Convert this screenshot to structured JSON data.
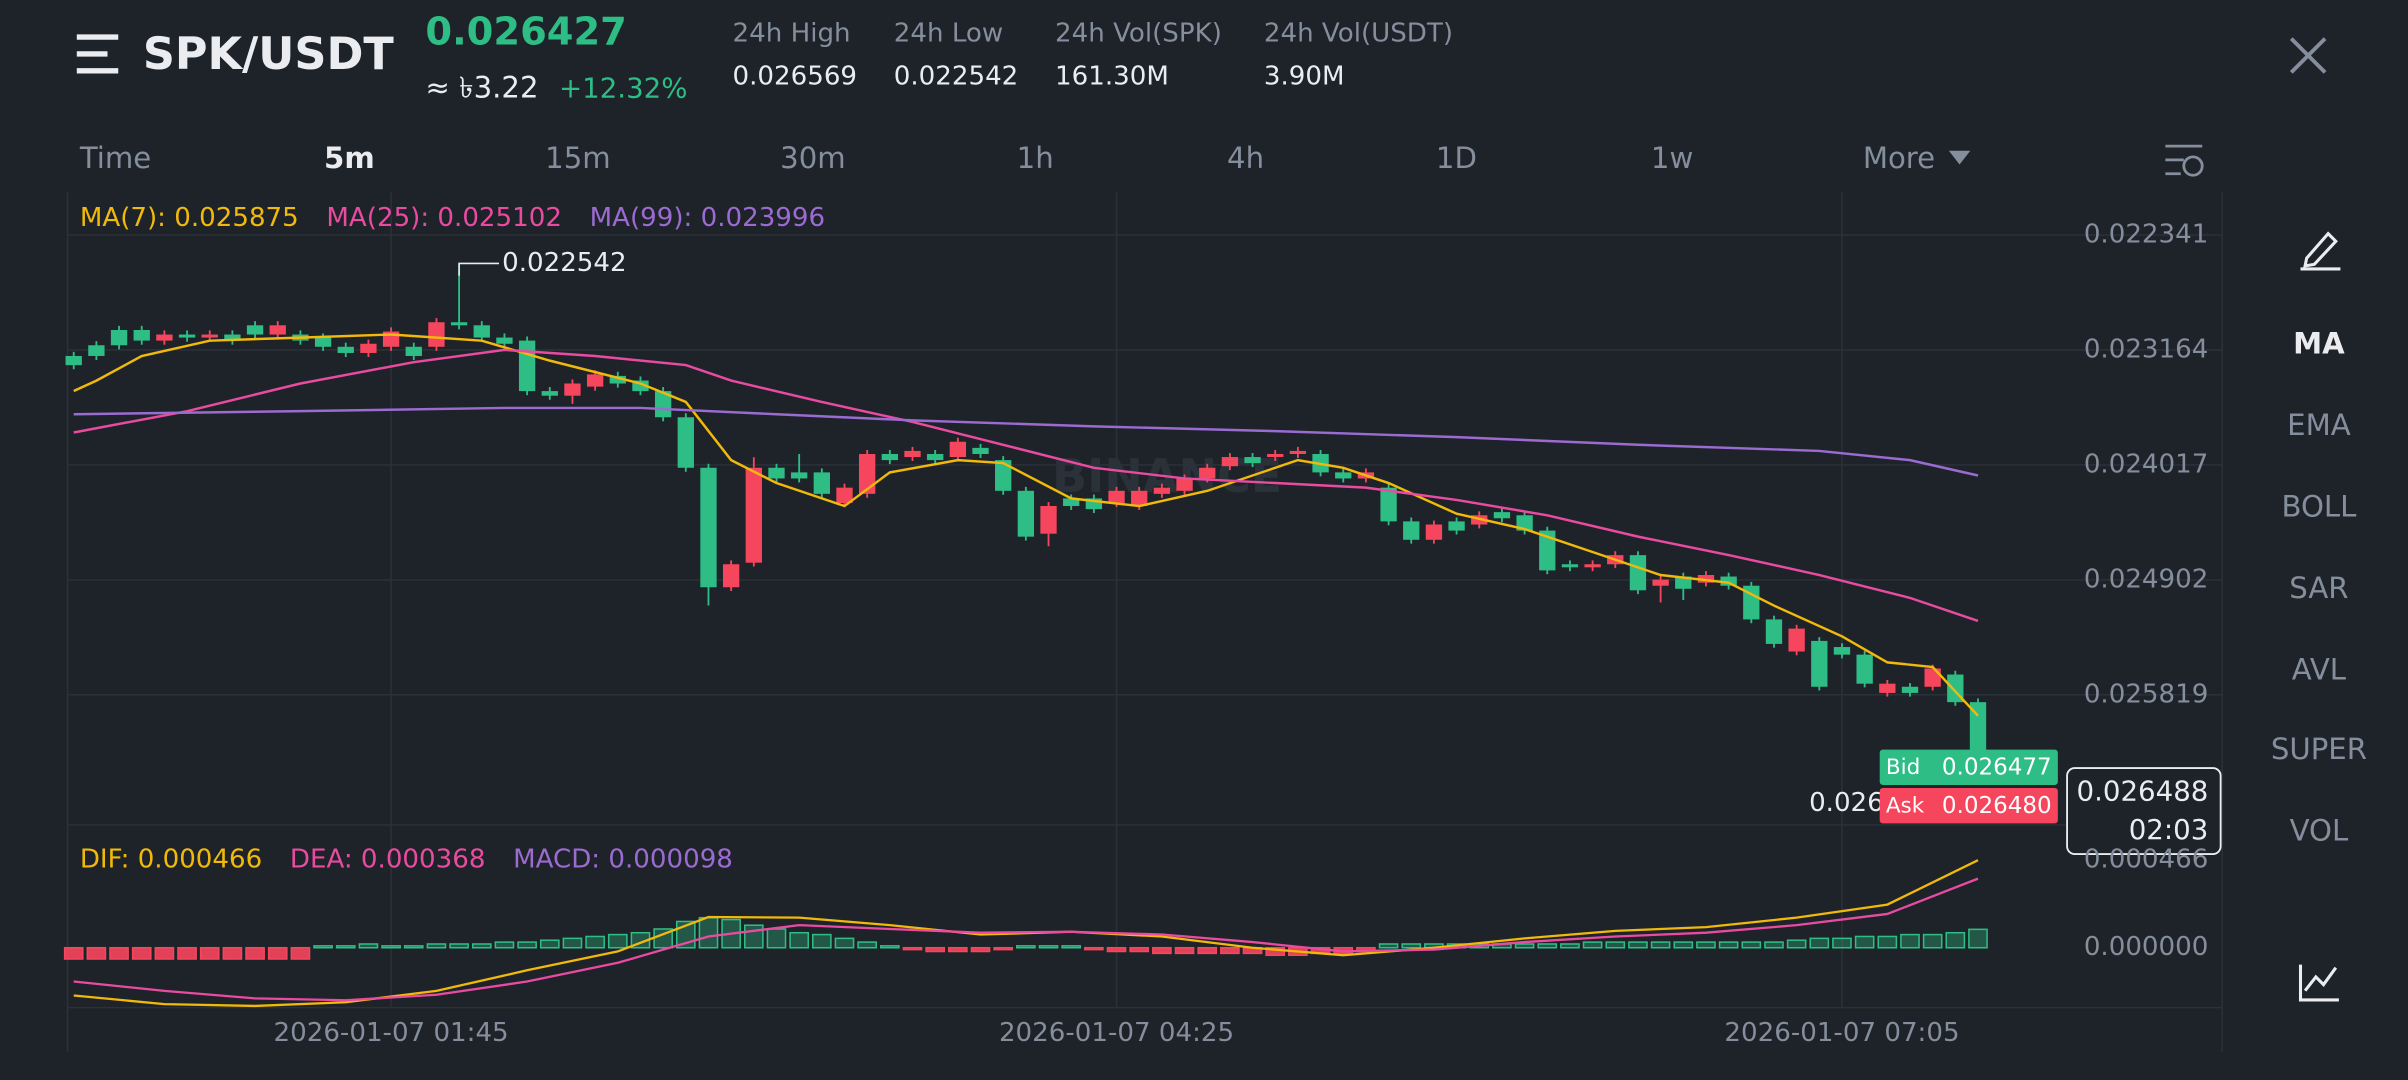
{
  "header": {
    "pair": "SPK/USDT",
    "price": "0.026427",
    "fiat": "≈ ৳3.22",
    "change": "+12.32%",
    "stats": [
      {
        "label": "24h High",
        "value": "0.026569"
      },
      {
        "label": "24h Low",
        "value": "0.022542"
      },
      {
        "label": "24h Vol(SPK)",
        "value": "161.30M"
      },
      {
        "label": "24h Vol(USDT)",
        "value": "3.90M"
      }
    ]
  },
  "timeframes": [
    "Time",
    "5m",
    "15m",
    "30m",
    "1h",
    "4h",
    "1D",
    "1w",
    "More"
  ],
  "indicators": [
    "MA",
    "EMA",
    "BOLL",
    "SAR",
    "AVL",
    "SUPER",
    "VOL"
  ],
  "chart_data": [
    {
      "type": "candlestick",
      "up_color": "#2ebd85",
      "down_color": "#f6465d",
      "log_scale": true,
      "inverted": true,
      "grid": true,
      "ylim": [
        0.022042,
        0.026898
      ],
      "yticks": [
        0.022341,
        0.023164,
        0.024017,
        0.024902,
        0.025819
      ],
      "xticks": [
        {
          "value": 14,
          "label": "2026-01-07 01:45"
        },
        {
          "value": 46,
          "label": "2026-01-07 04:25"
        },
        {
          "value": 78,
          "label": "2026-01-07 07:05"
        }
      ],
      "watermark": "BINANCE",
      "ohlc": [
        [
          0.023208,
          0.023305,
          0.023178,
          0.023275
        ],
        [
          0.02313,
          0.023238,
          0.0231,
          0.023208
        ],
        [
          0.023019,
          0.02316,
          0.022989,
          0.02313
        ],
        [
          0.023019,
          0.023126,
          0.022989,
          0.023096
        ],
        [
          0.023096,
          0.023126,
          0.023022,
          0.023052
        ],
        [
          0.023052,
          0.023104,
          0.023022,
          0.023074
        ],
        [
          0.023074,
          0.023104,
          0.023022,
          0.023052
        ],
        [
          0.023052,
          0.023126,
          0.023022,
          0.023096
        ],
        [
          0.022985,
          0.023082,
          0.022955,
          0.023052
        ],
        [
          0.023052,
          0.023082,
          0.022955,
          0.022985
        ],
        [
          0.023052,
          0.023126,
          0.023022,
          0.023096
        ],
        [
          0.023074,
          0.023171,
          0.023044,
          0.023141
        ],
        [
          0.023141,
          0.023216,
          0.023111,
          0.023186
        ],
        [
          0.023186,
          0.023216,
          0.023089,
          0.023119
        ],
        [
          0.023141,
          0.023171,
          0.023,
          0.02303
        ],
        [
          0.023141,
          0.023238,
          0.023111,
          0.023208
        ],
        [
          0.023141,
          0.023171,
          0.022933,
          0.022963
        ],
        [
          0.022963,
          0.023015,
          0.022542,
          0.022985
        ],
        [
          0.022985,
          0.023104,
          0.022955,
          0.023074
        ],
        [
          0.023074,
          0.023149,
          0.023044,
          0.023119
        ],
        [
          0.023096,
          0.023496,
          0.023066,
          0.023466
        ],
        [
          0.023466,
          0.02353,
          0.023436,
          0.0235
        ],
        [
          0.0235,
          0.02356,
          0.02338,
          0.02341
        ],
        [
          0.023433,
          0.023463,
          0.023313,
          0.023343
        ],
        [
          0.023354,
          0.02344,
          0.023324,
          0.02341
        ],
        [
          0.023388,
          0.023496,
          0.023358,
          0.023466
        ],
        [
          0.023466,
          0.02369,
          0.023436,
          0.02366
        ],
        [
          0.02366,
          0.024069,
          0.02363,
          0.024039
        ],
        [
          0.024039,
          0.025104,
          0.024009,
          0.02496
        ],
        [
          0.02496,
          0.02499,
          0.02475,
          0.02478
        ],
        [
          0.024768,
          0.024798,
          0.02396,
          0.024039
        ],
        [
          0.024039,
          0.02415,
          0.024009,
          0.02412
        ],
        [
          0.024074,
          0.02415,
          0.023935,
          0.02412
        ],
        [
          0.024074,
          0.024267,
          0.024044,
          0.024237
        ],
        [
          0.024307,
          0.024337,
          0.02416,
          0.02419
        ],
        [
          0.024237,
          0.024267,
          0.023905,
          0.023935
        ],
        [
          0.023935,
          0.024011,
          0.023905,
          0.023981
        ],
        [
          0.023958,
          0.023988,
          0.023882,
          0.023912
        ],
        [
          0.023935,
          0.024011,
          0.023905,
          0.023981
        ],
        [
          0.023958,
          0.023988,
          0.023813,
          0.023843
        ],
        [
          0.023889,
          0.023965,
          0.023859,
          0.023935
        ],
        [
          0.023981,
          0.024244,
          0.023951,
          0.024214
        ],
        [
          0.024214,
          0.024596,
          0.024184,
          0.024566
        ],
        [
          0.024543,
          0.02464,
          0.0243,
          0.02433
        ],
        [
          0.024272,
          0.02436,
          0.024242,
          0.02433
        ],
        [
          0.024272,
          0.024384,
          0.024242,
          0.024354
        ],
        [
          0.024307,
          0.024337,
          0.024184,
          0.024214
        ],
        [
          0.02433,
          0.02436,
          0.024184,
          0.024214
        ],
        [
          0.024237,
          0.024267,
          0.02416,
          0.02419
        ],
        [
          0.024214,
          0.024244,
          0.02409,
          0.02412
        ],
        [
          0.02412,
          0.02415,
          0.024009,
          0.024039
        ],
        [
          0.024027,
          0.024057,
          0.023928,
          0.023958
        ],
        [
          0.023958,
          0.024034,
          0.023928,
          0.024004
        ],
        [
          0.023958,
          0.023988,
          0.023905,
          0.023935
        ],
        [
          0.023935,
          0.023965,
          0.023882,
          0.023912
        ],
        [
          0.023935,
          0.024104,
          0.023905,
          0.024074
        ],
        [
          0.024074,
          0.02415,
          0.024044,
          0.02412
        ],
        [
          0.02412,
          0.02415,
          0.024044,
          0.024074
        ],
        [
          0.02419,
          0.024478,
          0.02416,
          0.024448
        ],
        [
          0.024448,
          0.02462,
          0.024418,
          0.02459
        ],
        [
          0.02459,
          0.02462,
          0.024442,
          0.024472
        ],
        [
          0.024448,
          0.024549,
          0.024418,
          0.024519
        ],
        [
          0.024472,
          0.024502,
          0.024371,
          0.024401
        ],
        [
          0.024377,
          0.024454,
          0.024347,
          0.024424
        ],
        [
          0.024401,
          0.024549,
          0.024371,
          0.024519
        ],
        [
          0.024519,
          0.024858,
          0.024489,
          0.024828
        ],
        [
          0.02478,
          0.024834,
          0.02475,
          0.024804
        ],
        [
          0.024804,
          0.024834,
          0.02475,
          0.02478
        ],
        [
          0.02478,
          0.02481,
          0.024679,
          0.024709
        ],
        [
          0.024709,
          0.025014,
          0.024679,
          0.024984
        ],
        [
          0.024948,
          0.02508,
          0.02487,
          0.0249
        ],
        [
          0.024876,
          0.02506,
          0.024846,
          0.024972
        ],
        [
          0.024924,
          0.024954,
          0.024834,
          0.024864
        ],
        [
          0.024876,
          0.024978,
          0.024846,
          0.024948
        ],
        [
          0.024948,
          0.025244,
          0.024918,
          0.025214
        ],
        [
          0.025214,
          0.025439,
          0.025184,
          0.025409
        ],
        [
          0.02547,
          0.0255,
          0.025257,
          0.025287
        ],
        [
          0.025385,
          0.025784,
          0.025355,
          0.025754
        ],
        [
          0.025434,
          0.025525,
          0.025404,
          0.025495
        ],
        [
          0.025495,
          0.025759,
          0.025465,
          0.025729
        ],
        [
          0.025804,
          0.025834,
          0.025699,
          0.025729
        ],
        [
          0.025754,
          0.025834,
          0.025724,
          0.025804
        ],
        [
          0.025754,
          0.025784,
          0.025576,
          0.025606
        ],
        [
          0.025655,
          0.025909,
          0.025625,
          0.025879
        ],
        [
          0.025879,
          0.026457,
          0.025849,
          0.026427
        ]
      ],
      "ma_series": [
        {
          "name": "MA(7): 0.025875",
          "color": "#f0b90b",
          "x": [
            0,
            1,
            3,
            6,
            10,
            14,
            18,
            21,
            25,
            27,
            29,
            31,
            34,
            36,
            39,
            41,
            44,
            47,
            50,
            54,
            56,
            58,
            61,
            64,
            67,
            70,
            73,
            75,
            78,
            80,
            82,
            84
          ],
          "values": [
            0.023466,
            0.023388,
            0.023208,
            0.023096,
            0.023074,
            0.023052,
            0.023096,
            0.023242,
            0.02341,
            0.023546,
            0.023981,
            0.024155,
            0.02433,
            0.024074,
            0.023981,
            0.024004,
            0.024272,
            0.02433,
            0.024214,
            0.023981,
            0.024039,
            0.024155,
            0.024389,
            0.024507,
            0.024685,
            0.024864,
            0.024924,
            0.025104,
            0.025348,
            0.025557,
            0.025594,
            0.025991
          ]
        },
        {
          "name": "MA(25): 0.025102",
          "color": "#e94ba1",
          "x": [
            0,
            5,
            10,
            15,
            19,
            23,
            27,
            29,
            33,
            37,
            41,
            45,
            49,
            53,
            57,
            61,
            65,
            69,
            73,
            77,
            81,
            84
          ],
          "values": [
            0.023774,
            0.023614,
            0.02341,
            0.023253,
            0.023163,
            0.023208,
            0.023275,
            0.023388,
            0.023546,
            0.023694,
            0.023866,
            0.024039,
            0.02412,
            0.024155,
            0.02419,
            0.024284,
            0.024401,
            0.024566,
            0.024709,
            0.024864,
            0.025044,
            0.025226
          ]
        },
        {
          "name": "MA(99): 0.023996",
          "color": "#9b6bd1",
          "x": [
            0,
            10,
            19,
            25,
            31,
            37,
            45,
            53,
            61,
            69,
            77,
            81,
            84
          ],
          "values": [
            0.023637,
            0.023614,
            0.023591,
            0.023591,
            0.023637,
            0.023683,
            0.023728,
            0.023763,
            0.023808,
            0.023866,
            0.023912,
            0.023981,
            0.024097
          ]
        }
      ],
      "bid": {
        "label": "Bid",
        "value": "0.026477"
      },
      "ask": {
        "label": "Ask",
        "value": "0.026480"
      },
      "mark_price": {
        "value": "0.026488",
        "countdown": "02:03"
      }
    },
    {
      "type": "macd",
      "ylim": [
        -0.000319,
        0.000589
      ],
      "yticks": [
        0.000466,
        {
          "value": 0,
          "label": "0.000000"
        }
      ],
      "up_color": "#2ebd85",
      "down_color": "#f6465d",
      "series": [
        {
          "name": "DIF: 0.000466",
          "color": "#f0b90b",
          "x": [
            0,
            4,
            8,
            12,
            16,
            20,
            24,
            28,
            32,
            36,
            40,
            44,
            48,
            52,
            56,
            60,
            64,
            68,
            72,
            76,
            80,
            84
          ],
          "values": [
            -0.000254,
            -0.0003,
            -0.00031,
            -0.00029,
            -0.00023,
            -0.00012,
            -2e-05,
            0.000164,
            0.00016,
            0.00012,
            7e-05,
            8.5e-05,
            6e-05,
            0,
            -4e-05,
            0,
            5e-05,
            9e-05,
            0.00011,
            0.00016,
            0.00023,
            0.000466
          ]
        },
        {
          "name": "DEA: 0.000368",
          "color": "#e94ba1",
          "x": [
            0,
            4,
            8,
            12,
            16,
            20,
            24,
            28,
            32,
            36,
            40,
            44,
            48,
            52,
            56,
            60,
            64,
            68,
            72,
            76,
            80,
            84
          ],
          "values": [
            -0.00018,
            -0.00023,
            -0.00027,
            -0.00028,
            -0.00025,
            -0.00018,
            -8e-05,
            6e-05,
            0.00012,
            0.0001,
            8e-05,
            8.5e-05,
            7e-05,
            3e-05,
            -2e-05,
            -1e-05,
            3e-05,
            6e-05,
            8e-05,
            0.00012,
            0.00018,
            0.000368
          ]
        }
      ],
      "histogram": {
        "name": "MACD: 0.000098",
        "color": "#9b6bd1",
        "values": [
          -6e-05,
          -6e-05,
          -6e-05,
          -6e-05,
          -6e-05,
          -6e-05,
          -6e-05,
          -6e-05,
          -6e-05,
          -6e-05,
          -6e-05,
          1e-05,
          1e-05,
          2e-05,
          1e-05,
          1e-05,
          2e-05,
          2e-05,
          2e-05,
          3e-05,
          3e-05,
          4e-05,
          5e-05,
          6e-05,
          7e-05,
          8e-05,
          0.0001,
          0.00014,
          0.00016,
          0.00015,
          0.00012,
          0.0001,
          8e-05,
          7e-05,
          5e-05,
          3e-05,
          1e-05,
          -1e-05,
          -2e-05,
          -2e-05,
          -2e-05,
          -1e-05,
          1e-05,
          1e-05,
          1e-05,
          -1e-05,
          -2e-05,
          -2e-05,
          -3e-05,
          -3e-05,
          -3e-05,
          -3e-05,
          -3e-05,
          -4e-05,
          -4e-05,
          -3e-05,
          -3e-05,
          -2e-05,
          2e-05,
          2e-05,
          2e-05,
          2e-05,
          2e-05,
          2e-05,
          2e-05,
          2e-05,
          2e-05,
          3e-05,
          3e-05,
          3e-05,
          3e-05,
          3e-05,
          3e-05,
          3e-05,
          3e-05,
          3e-05,
          4e-05,
          5e-05,
          5e-05,
          6e-05,
          6e-05,
          7e-05,
          7e-05,
          8e-05,
          9.8e-05
        ]
      }
    }
  ]
}
